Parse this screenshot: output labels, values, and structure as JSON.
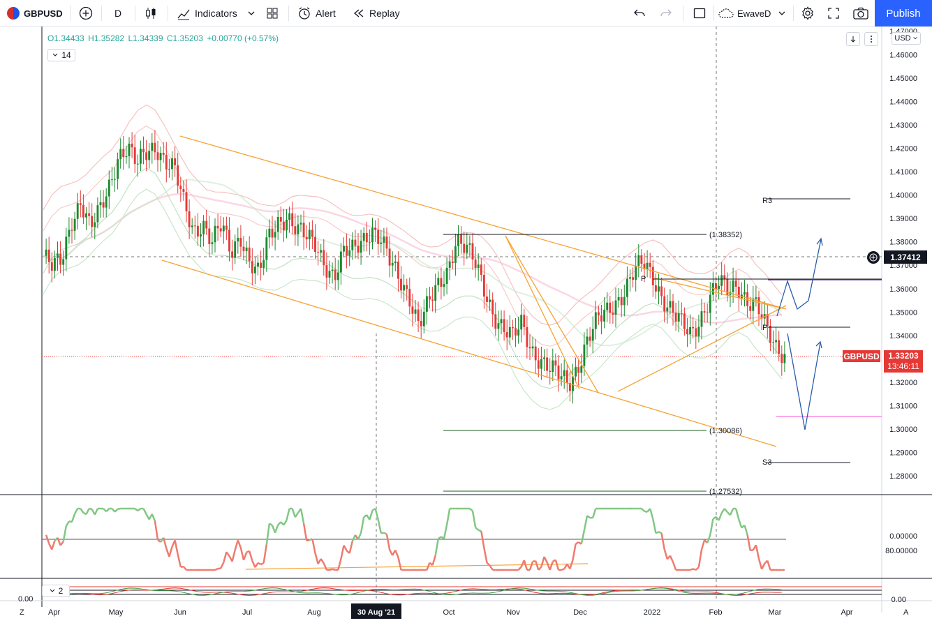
{
  "toolbar": {
    "symbol": "GBPUSD",
    "interval": "D",
    "indicators_label": "Indicators",
    "alert_label": "Alert",
    "replay_label": "Replay",
    "layout_name": "EwaveD",
    "publish_label": "Publish"
  },
  "legend": {
    "open": "O1.34433",
    "high": "H1.35282",
    "low": "L1.34339",
    "close": "C1.35203",
    "change": "+0.00770 (+0.57%)",
    "indicator_length": "14",
    "pane2_count": "2"
  },
  "price_axis": {
    "currency": "USD",
    "ticks": [
      "1.47000",
      "1.46000",
      "1.45000",
      "1.44000",
      "1.43000",
      "1.42000",
      "1.41000",
      "1.40000",
      "1.39000",
      "1.38000",
      "1.37000",
      "1.36000",
      "1.35000",
      "1.34000",
      "1.33000",
      "1.32000",
      "1.31000",
      "1.30000",
      "1.29000",
      "1.28000"
    ],
    "crosshair_price": "1.37412",
    "last_symbol": "GBPUSD",
    "last_price": "1.33203",
    "countdown": "13:46:11",
    "osc_ticks": [
      "80.00000",
      "0.00000"
    ],
    "pane2_tick": "0.00",
    "pane2_left": "0.00"
  },
  "time_axis": {
    "labels": [
      "Apr",
      "May",
      "Jun",
      "Jul",
      "Aug",
      "Oct",
      "Nov",
      "Dec",
      "2022",
      "Feb",
      "Mar",
      "Apr"
    ],
    "crosshair_date": "30 Aug '21",
    "left_btn": "Z",
    "right_btn": "A"
  },
  "annotations": {
    "fib_top": "(1.38352)",
    "fib_mid": "(1.30086)",
    "fib_low": "(1.27532)",
    "pivot_r3": "R3",
    "pivot_p": "P",
    "pivot_p2": "P",
    "pivot_s3": "S3"
  },
  "chart_data": {
    "type": "candlestick",
    "symbol": "GBPUSD",
    "interval": "D",
    "ylim": [
      1.272,
      1.472
    ],
    "x": [
      "Apr",
      "May",
      "Jun",
      "Jul",
      "Aug",
      "Oct",
      "Nov",
      "Dec",
      "2022",
      "Feb",
      "Mar",
      "Apr"
    ],
    "close_path": [
      1.374,
      1.368,
      1.372,
      1.39,
      1.398,
      1.385,
      1.392,
      1.404,
      1.418,
      1.42,
      1.412,
      1.418,
      1.422,
      1.415,
      1.41,
      1.395,
      1.385,
      1.389,
      1.38,
      1.386,
      1.375,
      1.384,
      1.372,
      1.365,
      1.381,
      1.389,
      1.392,
      1.385,
      1.381,
      1.379,
      1.372,
      1.365,
      1.374,
      1.376,
      1.382,
      1.386,
      1.38,
      1.37,
      1.364,
      1.358,
      1.345,
      1.352,
      1.36,
      1.368,
      1.382,
      1.377,
      1.37,
      1.36,
      1.35,
      1.343,
      1.338,
      1.345,
      1.335,
      1.33,
      1.325,
      1.322,
      1.32,
      1.328,
      1.338,
      1.345,
      1.35,
      1.355,
      1.36,
      1.367,
      1.37,
      1.365,
      1.357,
      1.35,
      1.344,
      1.34,
      1.348,
      1.357,
      1.362,
      1.358,
      1.362,
      1.356,
      1.353,
      1.342,
      1.335,
      1.333
    ],
    "last_price": 1.33203,
    "levels": {
      "fib_top": 1.38352,
      "fib_mid": 1.30086,
      "fib_low": 1.27532
    }
  }
}
